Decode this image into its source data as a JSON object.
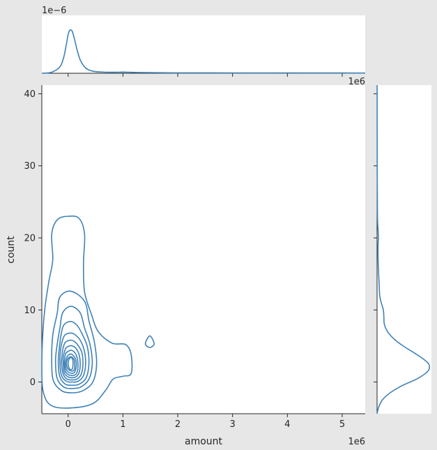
{
  "chart_data": {
    "type": "contour",
    "xlabel": "amount",
    "ylabel": "count",
    "x_scale_label": "1e6",
    "x_scale_label_top": "1e6",
    "top_marginal_scale_label": "1e−6",
    "xlim": [
      -0.48,
      5.42
    ],
    "ylim": [
      -4.4,
      41.2
    ],
    "x_ticks": [
      0,
      1,
      2,
      3,
      4,
      5
    ],
    "y_ticks": [
      0,
      10,
      20,
      30,
      40
    ],
    "grid": false,
    "line_color": "#3f82b7",
    "joint_kde_contours": [
      {
        "level": 1,
        "points": [
          [
            -0.48,
            2
          ],
          [
            -0.45,
            -1.5
          ],
          [
            -0.3,
            -3.3
          ],
          [
            0.05,
            -3.6
          ],
          [
            0.45,
            -3.0
          ],
          [
            0.68,
            -1.2
          ],
          [
            0.82,
            0.4
          ],
          [
            1.0,
            0.8
          ],
          [
            1.15,
            1.2
          ],
          [
            1.15,
            3.8
          ],
          [
            1.05,
            5.2
          ],
          [
            0.8,
            5.4
          ],
          [
            0.55,
            7.0
          ],
          [
            0.42,
            9.5
          ],
          [
            0.3,
            12.5
          ],
          [
            0.28,
            16.5
          ],
          [
            0.3,
            20.5
          ],
          [
            0.2,
            22.7
          ],
          [
            0.0,
            23.0
          ],
          [
            -0.2,
            22.5
          ],
          [
            -0.3,
            20.5
          ],
          [
            -0.28,
            17
          ],
          [
            -0.35,
            14
          ],
          [
            -0.42,
            10.5
          ],
          [
            -0.46,
            7
          ],
          [
            -0.48,
            2
          ]
        ]
      },
      {
        "level": 2,
        "points": [
          [
            1.49,
            4.8
          ],
          [
            1.57,
            5.3
          ],
          [
            1.49,
            6.4
          ],
          [
            1.41,
            5.3
          ],
          [
            1.49,
            4.8
          ]
        ]
      },
      {
        "level": 3,
        "points": [
          [
            -0.3,
            3
          ],
          [
            -0.27,
            0.2
          ],
          [
            -0.12,
            -1.2
          ],
          [
            0.07,
            -1.5
          ],
          [
            0.27,
            -1.2
          ],
          [
            0.45,
            0.0
          ],
          [
            0.52,
            2.5
          ],
          [
            0.48,
            5.5
          ],
          [
            0.38,
            8.5
          ],
          [
            0.3,
            11.2
          ],
          [
            0.05,
            12.6
          ],
          [
            -0.15,
            11.8
          ],
          [
            -0.2,
            9.5
          ],
          [
            -0.28,
            6.5
          ],
          [
            -0.3,
            3
          ]
        ]
      },
      {
        "level": 4,
        "points": [
          [
            -0.23,
            3
          ],
          [
            -0.2,
            0.5
          ],
          [
            -0.08,
            -0.7
          ],
          [
            0.07,
            -0.9
          ],
          [
            0.23,
            -0.7
          ],
          [
            0.38,
            0.4
          ],
          [
            0.44,
            2.6
          ],
          [
            0.4,
            5.2
          ],
          [
            0.3,
            7.5
          ],
          [
            0.22,
            9.6
          ],
          [
            0.05,
            10.5
          ],
          [
            -0.1,
            9.6
          ],
          [
            -0.15,
            7.5
          ],
          [
            -0.2,
            5.2
          ],
          [
            -0.23,
            3
          ]
        ]
      },
      {
        "level": 5,
        "points": [
          [
            -0.18,
            2.8
          ],
          [
            -0.15,
            0.7
          ],
          [
            -0.05,
            -0.3
          ],
          [
            0.07,
            -0.45
          ],
          [
            0.2,
            -0.3
          ],
          [
            0.33,
            0.6
          ],
          [
            0.38,
            2.7
          ],
          [
            0.35,
            4.9
          ],
          [
            0.26,
            6.6
          ],
          [
            0.16,
            7.9
          ],
          [
            0.04,
            8.4
          ],
          [
            -0.08,
            7.9
          ],
          [
            -0.13,
            6.5
          ],
          [
            -0.16,
            4.8
          ],
          [
            -0.18,
            2.8
          ]
        ]
      },
      {
        "level": 6,
        "points": [
          [
            -0.15,
            2.7
          ],
          [
            -0.12,
            0.9
          ],
          [
            -0.03,
            0.1
          ],
          [
            0.07,
            0.0
          ],
          [
            0.18,
            0.1
          ],
          [
            0.28,
            0.9
          ],
          [
            0.32,
            2.7
          ],
          [
            0.29,
            4.5
          ],
          [
            0.22,
            5.8
          ],
          [
            0.12,
            6.6
          ],
          [
            0.04,
            6.8
          ],
          [
            -0.06,
            6.5
          ],
          [
            -0.11,
            5.6
          ],
          [
            -0.14,
            4.3
          ],
          [
            -0.15,
            2.7
          ]
        ]
      },
      {
        "level": 7,
        "points": [
          [
            -0.12,
            2.6
          ],
          [
            -0.09,
            1.1
          ],
          [
            -0.02,
            0.4
          ],
          [
            0.07,
            0.3
          ],
          [
            0.16,
            0.4
          ],
          [
            0.24,
            1.1
          ],
          [
            0.27,
            2.6
          ],
          [
            0.25,
            4.1
          ],
          [
            0.18,
            5.1
          ],
          [
            0.1,
            5.7
          ],
          [
            0.03,
            5.8
          ],
          [
            -0.05,
            5.5
          ],
          [
            -0.09,
            4.8
          ],
          [
            -0.11,
            3.8
          ],
          [
            -0.12,
            2.6
          ]
        ]
      },
      {
        "level": 8,
        "points": [
          [
            -0.09,
            2.6
          ],
          [
            -0.07,
            1.3
          ],
          [
            0.0,
            0.7
          ],
          [
            0.07,
            0.6
          ],
          [
            0.14,
            0.7
          ],
          [
            0.2,
            1.3
          ],
          [
            0.22,
            2.6
          ],
          [
            0.2,
            3.8
          ],
          [
            0.15,
            4.6
          ],
          [
            0.08,
            5.0
          ],
          [
            0.02,
            5.0
          ],
          [
            -0.04,
            4.7
          ],
          [
            -0.07,
            4.1
          ],
          [
            -0.09,
            3.4
          ],
          [
            -0.09,
            2.6
          ]
        ]
      },
      {
        "level": 9,
        "points": [
          [
            -0.07,
            2.6
          ],
          [
            -0.05,
            1.5
          ],
          [
            0.01,
            1.0
          ],
          [
            0.07,
            0.9
          ],
          [
            0.13,
            1.0
          ],
          [
            0.17,
            1.5
          ],
          [
            0.18,
            2.6
          ],
          [
            0.16,
            3.5
          ],
          [
            0.12,
            4.1
          ],
          [
            0.06,
            4.4
          ],
          [
            0.01,
            4.3
          ],
          [
            -0.04,
            4.0
          ],
          [
            -0.06,
            3.4
          ],
          [
            -0.07,
            2.6
          ]
        ]
      },
      {
        "level": 10,
        "points": [
          [
            -0.05,
            2.6
          ],
          [
            -0.03,
            1.7
          ],
          [
            0.02,
            1.3
          ],
          [
            0.07,
            1.2
          ],
          [
            0.11,
            1.3
          ],
          [
            0.14,
            1.8
          ],
          [
            0.15,
            2.6
          ],
          [
            0.13,
            3.3
          ],
          [
            0.09,
            3.7
          ],
          [
            0.05,
            3.9
          ],
          [
            0.0,
            3.7
          ],
          [
            -0.03,
            3.3
          ],
          [
            -0.05,
            2.6
          ]
        ]
      },
      {
        "level": 11,
        "points": [
          [
            -0.03,
            2.6
          ],
          [
            -0.01,
            1.9
          ],
          [
            0.03,
            1.6
          ],
          [
            0.07,
            1.5
          ],
          [
            0.1,
            1.6
          ],
          [
            0.12,
            1.9
          ],
          [
            0.12,
            2.6
          ],
          [
            0.11,
            3.1
          ],
          [
            0.08,
            3.4
          ],
          [
            0.04,
            3.5
          ],
          [
            0.0,
            3.3
          ],
          [
            -0.02,
            3.0
          ],
          [
            -0.03,
            2.6
          ]
        ]
      },
      {
        "level": 12,
        "points": [
          [
            0.0,
            2.6
          ],
          [
            0.02,
            1.9
          ],
          [
            0.05,
            1.7
          ],
          [
            0.08,
            1.9
          ],
          [
            0.09,
            2.6
          ],
          [
            0.08,
            3.2
          ],
          [
            0.05,
            3.4
          ],
          [
            0.02,
            3.2
          ],
          [
            0.0,
            2.6
          ]
        ]
      }
    ],
    "marginal_x_kde": {
      "x": [
        -0.48,
        -0.3,
        -0.15,
        -0.08,
        -0.03,
        0.0,
        0.03,
        0.07,
        0.11,
        0.16,
        0.22,
        0.3,
        0.38,
        0.5,
        0.7,
        0.9,
        1.0,
        1.1,
        1.3,
        1.5,
        1.7,
        2.0,
        3.0,
        4.0,
        5.0,
        5.42
      ],
      "density": [
        0.0,
        0.02,
        0.12,
        0.3,
        0.55,
        0.72,
        0.8,
        0.79,
        0.66,
        0.45,
        0.25,
        0.12,
        0.06,
        0.03,
        0.02,
        0.02,
        0.022,
        0.02,
        0.014,
        0.012,
        0.01,
        0.008,
        0.006,
        0.006,
        0.005,
        0.004
      ]
    },
    "marginal_y_kde": {
      "y": [
        -4.4,
        -3.5,
        -2.5,
        -1.5,
        -0.5,
        0.5,
        1.5,
        2.3,
        3.0,
        4.0,
        5.0,
        6.0,
        7.0,
        8.0,
        9.0,
        10.0,
        11.0,
        12.0,
        13.5,
        15.0,
        17.0,
        19.0,
        20.0,
        21.0,
        22.0,
        24.0,
        30.0,
        41.2
      ],
      "density": [
        0.0,
        0.03,
        0.1,
        0.25,
        0.48,
        0.78,
        0.97,
        1.0,
        0.92,
        0.72,
        0.5,
        0.32,
        0.2,
        0.14,
        0.13,
        0.12,
        0.08,
        0.05,
        0.04,
        0.03,
        0.02,
        0.018,
        0.025,
        0.02,
        0.012,
        0.006,
        0.003,
        0.001
      ]
    }
  }
}
